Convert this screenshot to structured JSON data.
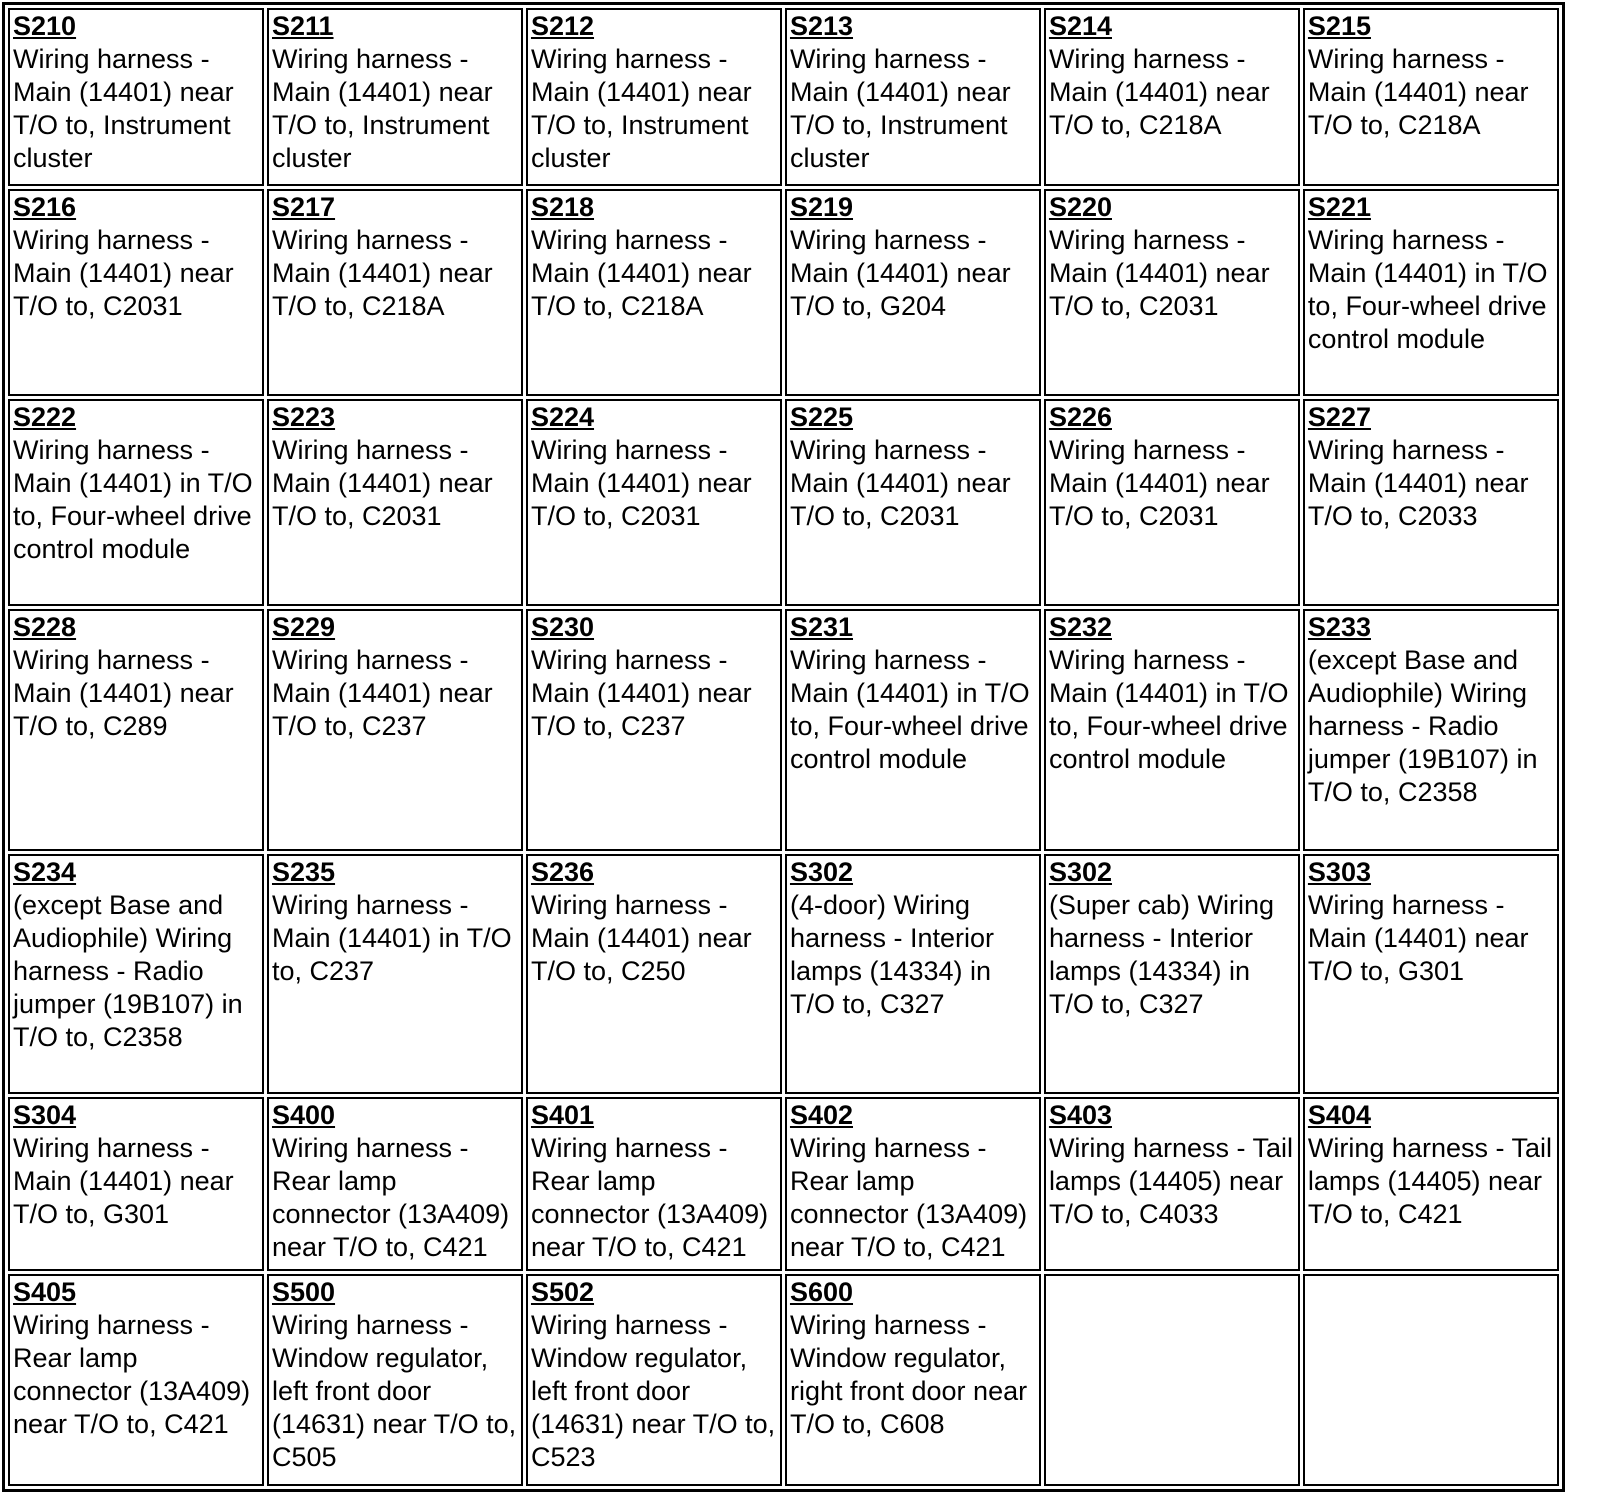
{
  "rows": [
    [
      {
        "id": "S210",
        "desc": "Wiring harness - Main (14401) near T/O to, Instrument cluster"
      },
      {
        "id": "S211",
        "desc": "Wiring harness - Main (14401) near T/O to, Instrument cluster"
      },
      {
        "id": "S212",
        "desc": "Wiring harness - Main (14401) near T/O to, Instrument cluster"
      },
      {
        "id": "S213",
        "desc": "Wiring harness - Main (14401) near T/O to, Instrument cluster"
      },
      {
        "id": "S214",
        "desc": "Wiring harness - Main (14401) near T/O to, C218A"
      },
      {
        "id": "S215",
        "desc": "Wiring harness - Main (14401) near T/O to, C218A"
      }
    ],
    [
      {
        "id": "S216",
        "desc": "Wiring harness - Main (14401) near T/O to, C2031"
      },
      {
        "id": "S217",
        "desc": "Wiring harness - Main (14401) near T/O to, C218A"
      },
      {
        "id": "S218",
        "desc": "Wiring harness - Main (14401) near T/O to, C218A"
      },
      {
        "id": "S219",
        "desc": "Wiring harness - Main (14401) near T/O to, G204"
      },
      {
        "id": "S220",
        "desc": "Wiring harness - Main (14401) near T/O to, C2031"
      },
      {
        "id": "S221",
        "desc": "Wiring harness - Main (14401) in T/O to, Four-wheel drive control module"
      }
    ],
    [
      {
        "id": "S222",
        "desc": "Wiring harness - Main (14401) in T/O to, Four-wheel drive control module"
      },
      {
        "id": "S223",
        "desc": "Wiring harness - Main (14401) near T/O to, C2031"
      },
      {
        "id": "S224",
        "desc": "Wiring harness - Main (14401) near T/O to, C2031"
      },
      {
        "id": "S225",
        "desc": "Wiring harness - Main (14401) near T/O to, C2031"
      },
      {
        "id": "S226",
        "desc": "Wiring harness - Main (14401) near T/O to, C2031"
      },
      {
        "id": "S227",
        "desc": "Wiring harness - Main (14401) near T/O to, C2033"
      }
    ],
    [
      {
        "id": "S228",
        "desc": "Wiring harness - Main (14401) near T/O to, C289"
      },
      {
        "id": "S229",
        "desc": "Wiring harness - Main (14401) near T/O to, C237"
      },
      {
        "id": "S230",
        "desc": "Wiring harness - Main (14401) near T/O to, C237"
      },
      {
        "id": "S231",
        "desc": "Wiring harness - Main (14401) in T/O to, Four-wheel drive control module"
      },
      {
        "id": "S232",
        "desc": "Wiring harness - Main (14401) in T/O to, Four-wheel drive control module"
      },
      {
        "id": "S233",
        "desc": "(except Base and Audiophile) Wiring harness - Radio jumper (19B107) in T/O to, C2358"
      }
    ],
    [
      {
        "id": "S234",
        "desc": "(except Base and Audiophile) Wiring harness - Radio jumper (19B107) in T/O to, C2358"
      },
      {
        "id": "S235",
        "desc": "Wiring harness - Main (14401) in T/O to, C237"
      },
      {
        "id": "S236",
        "desc": "Wiring harness - Main (14401) near T/O to, C250"
      },
      {
        "id": "S302",
        "desc": "(4-door) Wiring harness - Interior lamps (14334) in T/O to, C327"
      },
      {
        "id": "S302",
        "desc": "(Super cab) Wiring harness - Interior lamps (14334) in T/O to, C327"
      },
      {
        "id": "S303",
        "desc": "Wiring harness - Main (14401) near T/O to, G301"
      }
    ],
    [
      {
        "id": "S304",
        "desc": "Wiring harness - Main (14401) near T/O to, G301"
      },
      {
        "id": "S400",
        "desc": "Wiring harness - Rear lamp connector (13A409) near T/O to, C421"
      },
      {
        "id": "S401",
        "desc": "Wiring harness - Rear lamp connector (13A409) near T/O to, C421"
      },
      {
        "id": "S402",
        "desc": "Wiring harness - Rear lamp connector (13A409) near T/O to, C421"
      },
      {
        "id": "S403",
        "desc": "Wiring harness - Tail lamps (14405) near T/O to, C4033"
      },
      {
        "id": "S404",
        "desc": "Wiring harness - Tail lamps (14405) near T/O to, C421"
      }
    ],
    [
      {
        "id": "S405",
        "desc": "Wiring harness - Rear lamp connector (13A409) near T/O to, C421"
      },
      {
        "id": "S500",
        "desc": "Wiring harness - Window regulator, left front door (14631) near T/O to, C505"
      },
      {
        "id": "S502",
        "desc": "Wiring harness - Window regulator, left front door (14631) near T/O to, C523"
      },
      {
        "id": "S600",
        "desc": "Wiring harness - Window regulator, right front door near T/O to, C608"
      },
      {
        "id": "",
        "desc": ""
      },
      {
        "id": "",
        "desc": ""
      }
    ]
  ]
}
